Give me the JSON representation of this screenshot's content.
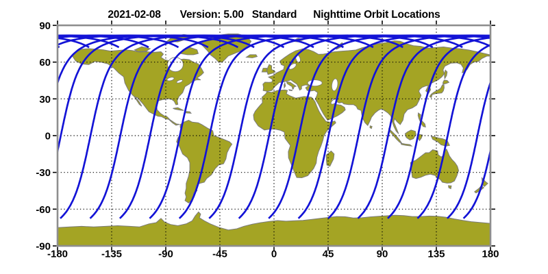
{
  "header": {
    "date": "2021-02-08",
    "version_label": "Version: 5.00",
    "mode_label": "Standard",
    "plot_title": "Nighttime Orbit Locations"
  },
  "axes": {
    "x_tick_labels": [
      "-180",
      "-135",
      "-90",
      "-45",
      "0",
      "45",
      "90",
      "135",
      "180"
    ],
    "y_tick_labels": [
      "90",
      "60",
      "30",
      "0",
      "-30",
      "-60",
      "-90"
    ],
    "x_tick_lons": [
      -180,
      -135,
      -90,
      -45,
      0,
      45,
      90,
      135,
      180
    ],
    "y_tick_lats": [
      90,
      60,
      30,
      0,
      -30,
      -60,
      -90
    ],
    "x_grid_lons": [
      -135,
      -90,
      -45,
      0,
      45,
      90,
      135
    ],
    "y_grid_lats": [
      60,
      30,
      0,
      -30,
      -60
    ],
    "lon_min": -180,
    "lon_max": 180,
    "lat_min": -90,
    "lat_max": 90
  },
  "chart_data": {
    "type": "map",
    "projection": "equirectangular",
    "title": "Nighttime Orbit Locations",
    "date": "2021-02-08",
    "version": "5.00",
    "product": "Standard",
    "x_range": [
      -180,
      180
    ],
    "y_range": [
      -90,
      90
    ],
    "x_ticks": [
      -180,
      -135,
      -90,
      -45,
      0,
      45,
      90,
      135,
      180
    ],
    "y_ticks": [
      90,
      60,
      30,
      0,
      -30,
      -60,
      -90
    ],
    "grid": "dotted",
    "legend": "none",
    "orbit_tracks": {
      "count": 15,
      "inclination_deg": 98.2,
      "max_latitude_deg": 81.8,
      "turnaround_band_latitude_deg": 81.3,
      "south_end_latitude_deg": -67.5,
      "north_tail_end_latitude_deg": 72,
      "node_spacing_deg": 24.75,
      "earth_rotation_deg_per_orbit": 24.75,
      "descending_node_longitudes_deg": [
        -177.3,
        -152.6,
        -127.8,
        -103.1,
        -78.3,
        -53.6,
        -28.8,
        -4.1,
        20.7,
        45.4,
        70.2,
        94.9,
        119.7,
        144.4,
        169.2
      ]
    },
    "colors": {
      "track": "#1313d6",
      "land": "#a4a424",
      "coastline": "#7a7a7a",
      "ocean": "#ffffff",
      "grid": "#000000",
      "frame": "#8e8e8e",
      "text": "#000000"
    }
  }
}
